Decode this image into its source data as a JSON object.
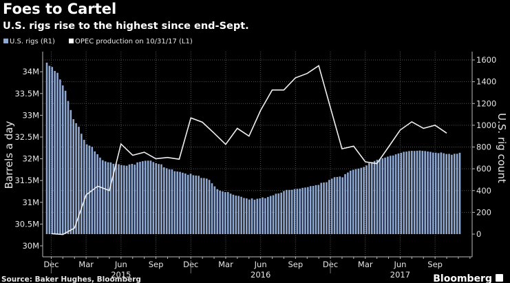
{
  "chart_data": {
    "type": "bar+line",
    "title": "Foes to Cartel",
    "subtitle": "U.S. rigs rise to the highest since end-Sept.",
    "legend": [
      {
        "label": "U.S. rigs  (R1)",
        "color": "#8ea9d3"
      },
      {
        "label": "OPEC production  on 10/31/17 (L1)",
        "color": "#ffffff"
      }
    ],
    "left_axis": {
      "title": "Barrels a day",
      "ticks": [
        "30M",
        "30.5M",
        "31M",
        "31.5M",
        "32M",
        "32.5M",
        "33M",
        "33.5M",
        "34M"
      ],
      "range": [
        30,
        34.2
      ]
    },
    "right_axis": {
      "title": "U.S. rig count",
      "ticks": [
        "0",
        "200",
        "400",
        "600",
        "800",
        "1000",
        "1200",
        "1400",
        "1600"
      ],
      "range": [
        -200,
        1650
      ]
    },
    "x_months": [
      "Dec",
      "Mar",
      "Jun",
      "Sep",
      "Dec",
      "Mar",
      "Jun",
      "Sep",
      "Dec",
      "Mar",
      "Jun",
      "Sep"
    ],
    "x_years": [
      "2015",
      "2016",
      "2017"
    ],
    "us_rigs_weekly": {
      "start": "2014-12-05",
      "values": [
        1575,
        1546,
        1536,
        1499,
        1482,
        1421,
        1366,
        1317,
        1223,
        1140,
        1056,
        1019,
        986,
        922,
        866,
        825,
        813,
        802,
        760,
        734,
        703,
        679,
        668,
        660,
        659,
        646,
        646,
        642,
        635,
        631,
        628,
        640,
        645,
        638,
        659,
        664,
        670,
        674,
        675,
        675,
        662,
        652,
        644,
        641,
        614,
        605,
        595,
        594,
        578,
        575,
        572,
        564,
        557,
        545,
        555,
        541,
        538,
        536,
        516,
        515,
        510,
        498,
        467,
        439,
        413,
        400,
        392,
        386,
        387,
        372,
        362,
        354,
        351,
        343,
        332,
        328,
        318,
        328,
        316,
        325,
        328,
        337,
        330,
        341,
        351,
        357,
        371,
        374,
        381,
        396,
        406,
        406,
        407,
        414,
        416,
        418,
        425,
        428,
        432,
        441,
        443,
        450,
        452,
        471,
        474,
        477,
        498,
        510,
        523,
        525,
        529,
        522,
        551,
        566,
        583,
        591,
        597,
        602,
        609,
        617,
        631,
        652,
        662,
        672,
        683,
        688,
        697,
        703,
        712,
        720,
        722,
        733,
        741,
        747,
        756,
        758,
        763,
        765,
        764,
        766,
        768,
        765,
        763,
        759,
        756,
        749,
        748,
        744,
        750,
        743,
        736,
        737,
        729,
        738,
        738,
        747
      ]
    },
    "opec_production_monthly": {
      "start": "2014-12",
      "unit": "barrels a day (millions)",
      "values": [
        30.28,
        30.26,
        30.41,
        31.17,
        31.37,
        31.27,
        32.34,
        32.08,
        32.15,
        32.0,
        32.03,
        31.99,
        32.94,
        32.84,
        32.59,
        32.33,
        32.7,
        32.52,
        33.11,
        33.58,
        33.58,
        33.86,
        33.96,
        34.14,
        33.18,
        32.23,
        32.29,
        31.93,
        31.89,
        32.27,
        32.66,
        32.85,
        32.7,
        32.77,
        32.59
      ]
    },
    "grid": true
  },
  "footer": {
    "source": "Source: Baker Hughes, Bloomberg",
    "brand": "Bloomberg"
  }
}
